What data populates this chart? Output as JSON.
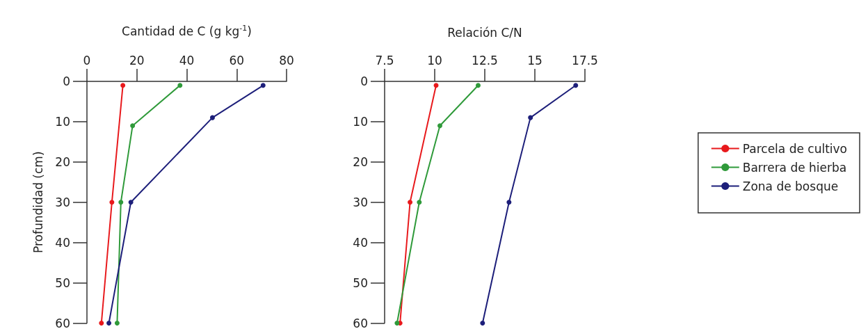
{
  "chart_data": [
    {
      "type": "line",
      "xlabel": "Cantidad de C (g kg$^{-1}$)",
      "ylabel": "Profundidad (cm)",
      "xlim": [
        0,
        80
      ],
      "xticks": [
        0,
        20,
        40,
        60,
        80
      ],
      "ylim": [
        60,
        0
      ],
      "yticks": [
        0,
        10,
        20,
        30,
        40,
        50,
        60
      ],
      "marker": "circle",
      "series": [
        {
          "color": "#e8191c",
          "x": [
            14.4,
            10.0,
            5.8
          ],
          "values": [
            1,
            30,
            60
          ]
        },
        {
          "color": "#2f9a3a",
          "x": [
            37.3,
            18.3,
            13.6,
            12.1
          ],
          "values": [
            1,
            11,
            30,
            60
          ]
        },
        {
          "color": "#1d1f7a",
          "x": [
            70.6,
            50.3,
            17.6,
            8.8
          ],
          "values": [
            1,
            9,
            30,
            60
          ]
        }
      ]
    },
    {
      "type": "line",
      "xlabel": "Relación C/N",
      "xlim": [
        7.5,
        17.5
      ],
      "xticks": [
        7.5,
        10,
        12.5,
        15,
        17.5
      ],
      "ylim": [
        60,
        0
      ],
      "yticks": [
        0,
        10,
        20,
        30,
        40,
        50,
        60
      ],
      "marker": "circle",
      "legend": "right",
      "series": [
        {
          "name": "Parcela de cultivo",
          "color": "#e8191c",
          "x": [
            10.07,
            8.77,
            8.27
          ],
          "values": [
            1,
            30,
            60
          ]
        },
        {
          "name": "Barrera de hierba",
          "color": "#2f9a3a",
          "x": [
            12.17,
            10.26,
            9.23,
            8.12
          ],
          "values": [
            1,
            11,
            30,
            60
          ]
        },
        {
          "name": "Zona de bosque",
          "color": "#1d1f7a",
          "x": [
            17.04,
            14.78,
            13.71,
            12.39
          ],
          "values": [
            1,
            9,
            30,
            60
          ]
        }
      ]
    }
  ]
}
